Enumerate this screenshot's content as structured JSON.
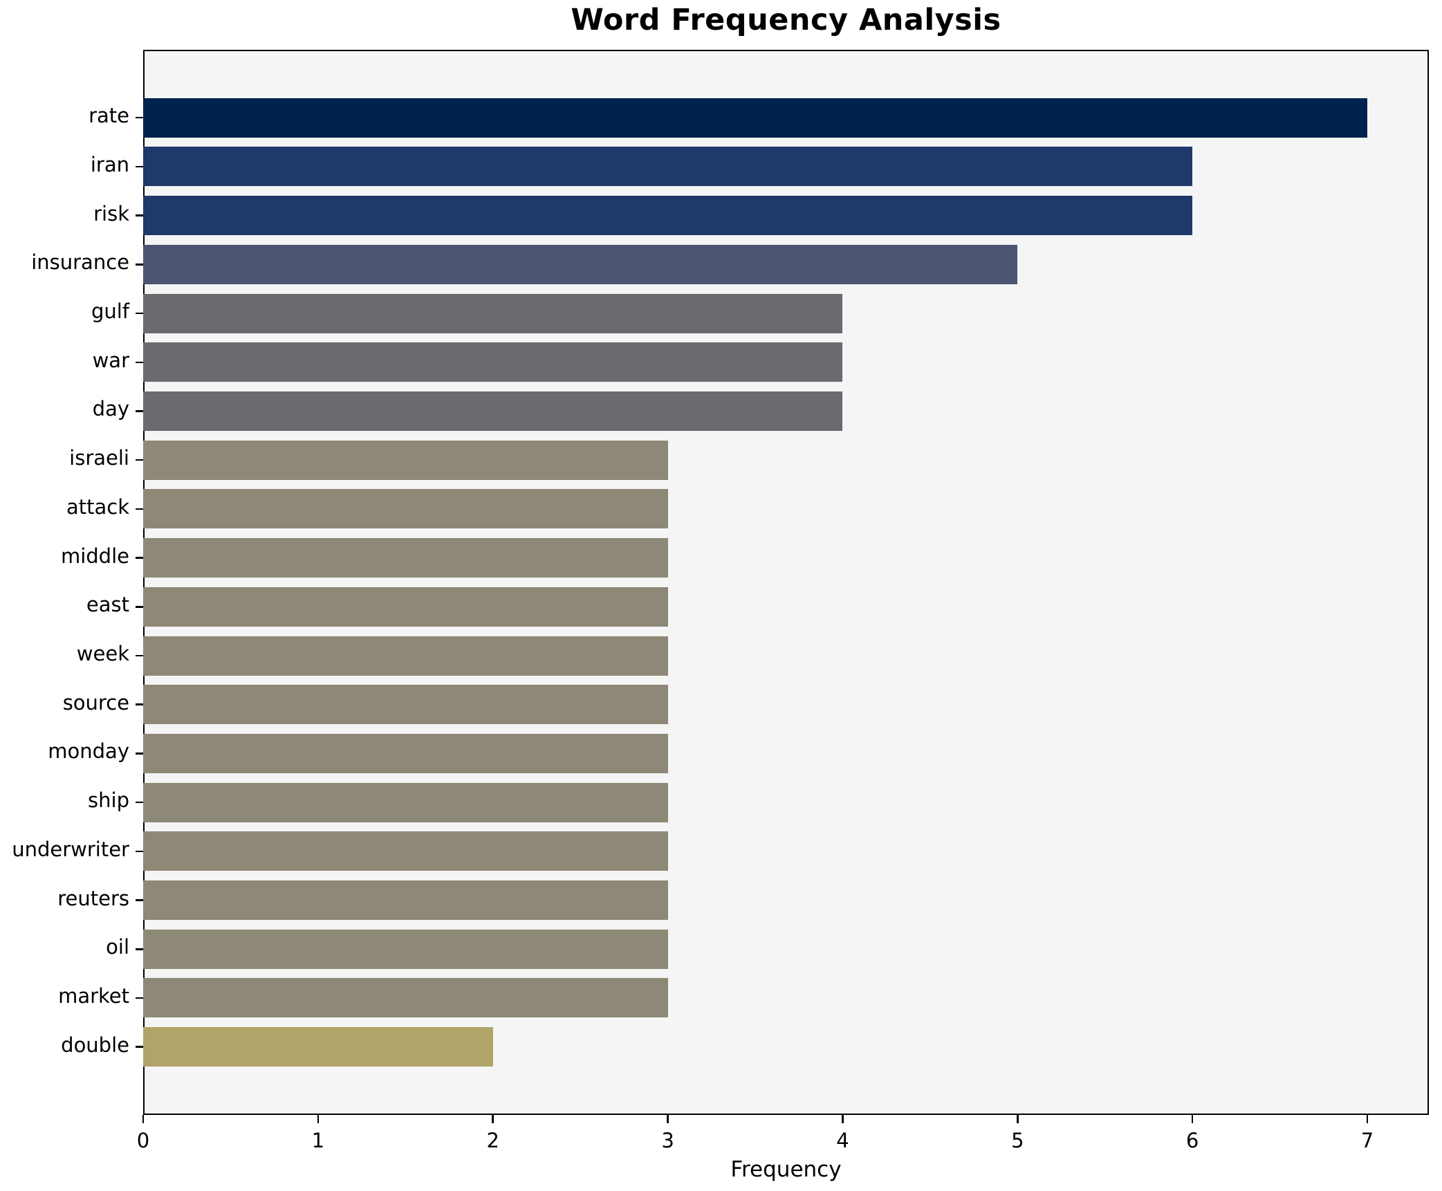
{
  "chart_data": {
    "type": "bar",
    "orientation": "horizontal",
    "title": "Word Frequency Analysis",
    "xlabel": "Frequency",
    "ylabel": "",
    "categories": [
      "rate",
      "iran",
      "risk",
      "insurance",
      "gulf",
      "war",
      "day",
      "israeli",
      "attack",
      "middle",
      "east",
      "week",
      "source",
      "monday",
      "ship",
      "underwriter",
      "reuters",
      "oil",
      "market",
      "double"
    ],
    "values": [
      7,
      6,
      6,
      5,
      4,
      4,
      4,
      3,
      3,
      3,
      3,
      3,
      3,
      3,
      3,
      3,
      3,
      3,
      3,
      2
    ],
    "bar_colors": [
      "#00224e",
      "#20396b",
      "#20396b",
      "#4c5571",
      "#6a6a70",
      "#6a6a70",
      "#6a6a70",
      "#8e8977",
      "#8e8977",
      "#8e8977",
      "#8e8977",
      "#8e8977",
      "#8e8977",
      "#8e8977",
      "#8e8977",
      "#8e8977",
      "#8e8977",
      "#8e8977",
      "#8e8977",
      "#b0a468"
    ],
    "xticks": [
      0,
      1,
      2,
      3,
      4,
      5,
      6,
      7
    ],
    "xlim": [
      0,
      7.35
    ],
    "grid": false,
    "legend": null,
    "plot_background": "#f5f5f6",
    "figure_background": "#ffffff",
    "spine_color": "#000000"
  }
}
